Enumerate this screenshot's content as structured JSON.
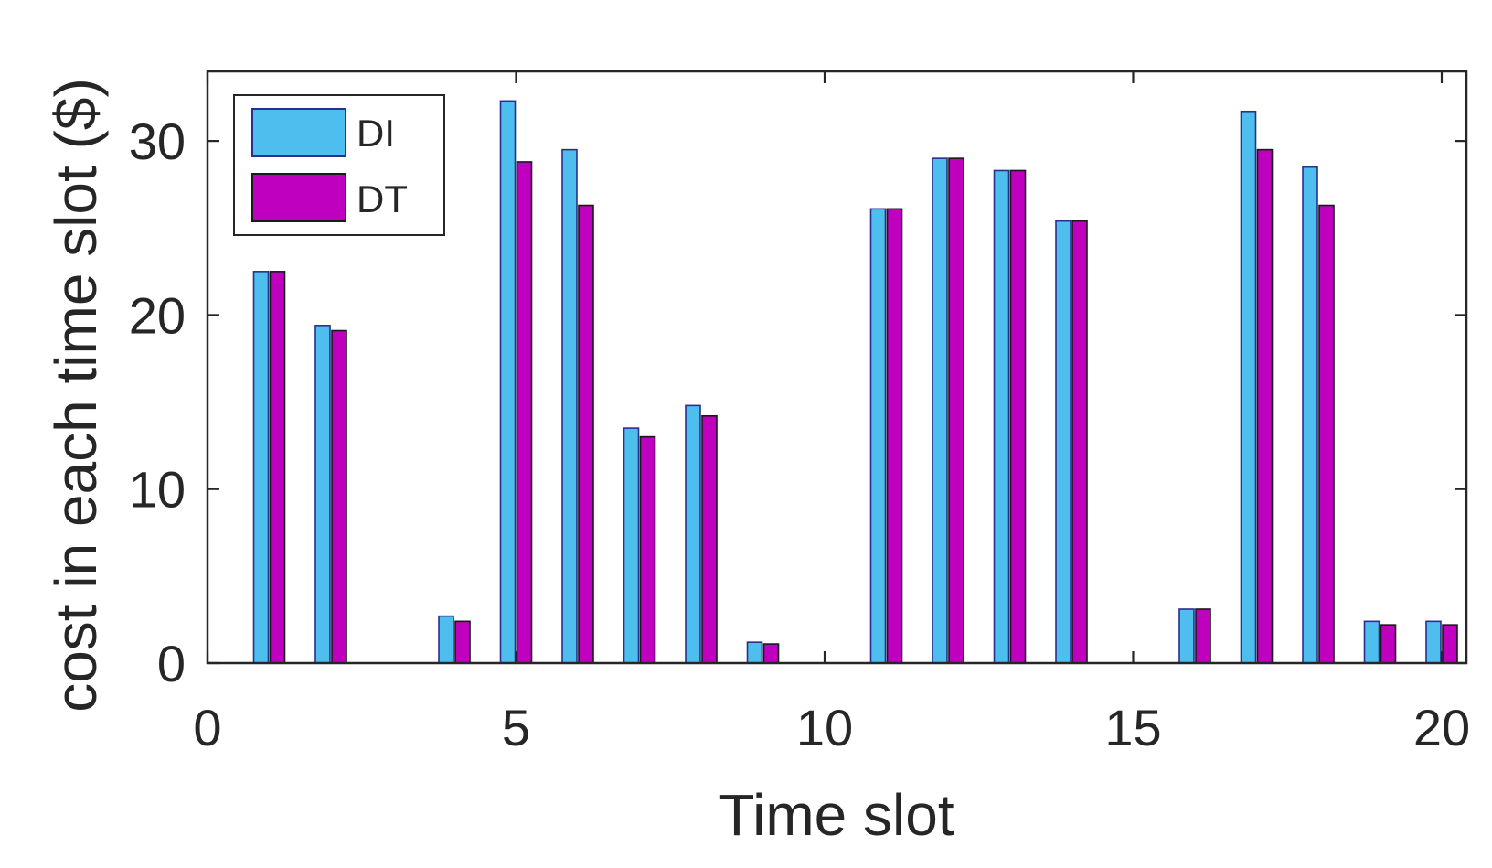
{
  "chart_data": {
    "type": "bar",
    "title": "",
    "xlabel": "Time slot",
    "ylabel": "cost in each time slot ($)",
    "xlim": [
      0,
      20.4
    ],
    "ylim": [
      0,
      34
    ],
    "xticks": [
      0,
      5,
      10,
      15,
      20
    ],
    "yticks": [
      0,
      10,
      20,
      30
    ],
    "grid": false,
    "legend_position": "top-left",
    "categories": [
      1,
      2,
      3,
      4,
      5,
      6,
      7,
      8,
      9,
      10,
      11,
      12,
      13,
      14,
      15,
      16,
      17,
      18,
      19,
      20
    ],
    "series": [
      {
        "name": "DI",
        "color": "#4DBEEE",
        "edge_color": "#2B2E8C",
        "values": [
          22.5,
          19.4,
          0,
          2.7,
          32.3,
          29.5,
          13.5,
          14.8,
          1.2,
          0,
          26.1,
          29.0,
          28.3,
          25.4,
          0,
          3.1,
          31.7,
          28.5,
          2.4,
          2.4
        ]
      },
      {
        "name": "DT",
        "color": "#BF00BF",
        "edge_color": "#1A1A1A",
        "values": [
          22.5,
          19.1,
          0,
          2.4,
          28.8,
          26.3,
          13.0,
          14.2,
          1.1,
          0,
          26.1,
          29.0,
          28.3,
          25.4,
          0,
          3.1,
          29.5,
          26.3,
          2.2,
          2.2
        ]
      }
    ]
  }
}
